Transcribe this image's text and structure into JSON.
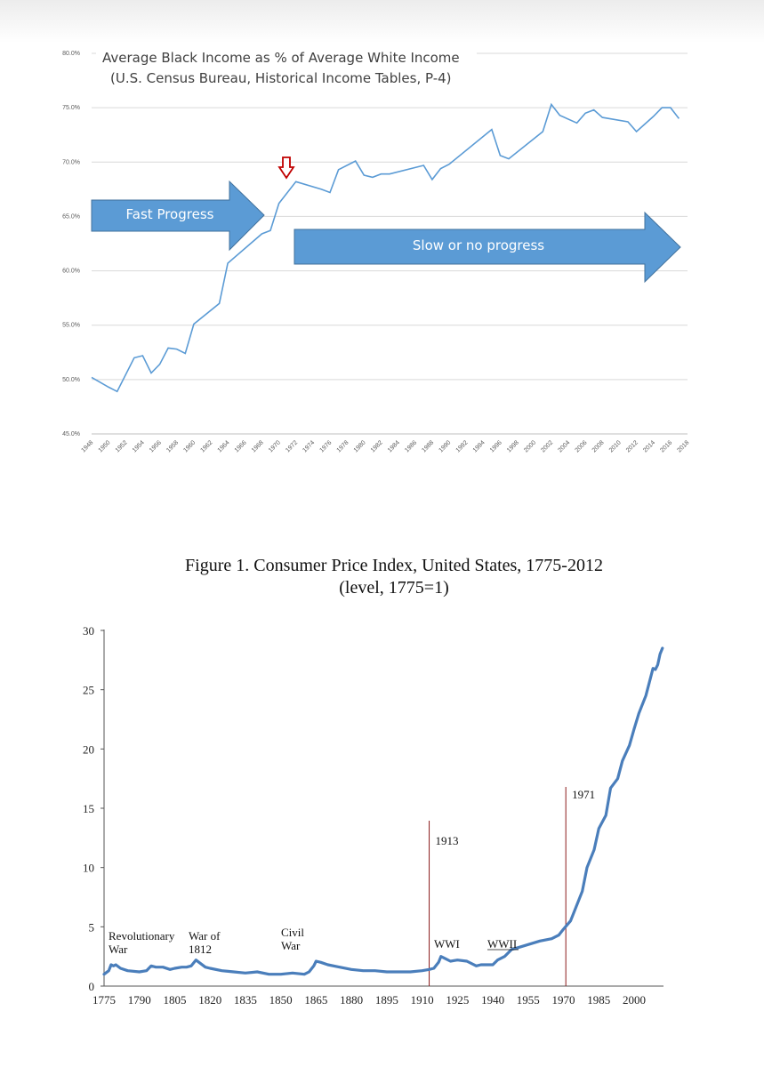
{
  "chart_data": [
    {
      "type": "line",
      "title": "Average Black Income as % of Average White Income",
      "subtitle": "(U.S. Census Bureau, Historical Income Tables, P-4)",
      "xlabel": "",
      "ylabel": "",
      "ylim": [
        45,
        80
      ],
      "yticks": [
        "45.0%",
        "50.0%",
        "55.0%",
        "60.0%",
        "65.0%",
        "70.0%",
        "75.0%",
        "80.0%"
      ],
      "xticks": [
        "1948",
        "1950",
        "1952",
        "1954",
        "1956",
        "1958",
        "1960",
        "1962",
        "1964",
        "1966",
        "1968",
        "1970",
        "1972",
        "1974",
        "1976",
        "1978",
        "1980",
        "1982",
        "1984",
        "1986",
        "1988",
        "1990",
        "1992",
        "1994",
        "1996",
        "1998",
        "2000",
        "2002",
        "2004",
        "2006",
        "2008",
        "2010",
        "2012",
        "2014",
        "2016",
        "2018"
      ],
      "grid": true,
      "line_color": "#5b9bd5",
      "series": [
        {
          "x": [
            1948,
            1950,
            1951,
            1953,
            1954,
            1955,
            1956,
            1957,
            1958,
            1959,
            1960,
            1963,
            1964,
            1968,
            1969,
            1970,
            1972,
            1975,
            1976,
            1977,
            1979,
            1980,
            1981,
            1982,
            1983,
            1987,
            1988,
            1989,
            1990,
            1995,
            1996,
            1997,
            2001,
            2002,
            2003,
            2005,
            2006,
            2007,
            2008,
            2011,
            2012,
            2014,
            2015,
            2016,
            2017
          ],
          "values": [
            50.2,
            49.3,
            48.9,
            52.0,
            52.2,
            50.6,
            51.4,
            52.9,
            52.8,
            52.4,
            55.1,
            57.0,
            60.7,
            63.4,
            63.7,
            66.2,
            68.2,
            67.5,
            67.2,
            69.3,
            70.1,
            68.8,
            68.6,
            68.9,
            68.9,
            69.7,
            68.4,
            69.4,
            69.8,
            73.0,
            70.6,
            70.3,
            72.8,
            75.3,
            74.3,
            73.6,
            74.5,
            74.8,
            74.1,
            73.7,
            72.8,
            74.2,
            75.0,
            75.0,
            74.0
          ]
        }
      ],
      "annotations": [
        {
          "text": "Fast Progress",
          "kind": "arrow",
          "color": "#5b9bd5"
        },
        {
          "text": "Slow or no progress",
          "kind": "arrow",
          "color": "#5b9bd5"
        },
        {
          "kind": "down-arrow-marker",
          "color": "#c00000",
          "at_x": 1971
        }
      ]
    },
    {
      "type": "line",
      "title": "Figure 1. Consumer Price Index, United States, 1775-2012",
      "subtitle": "(level, 1775=1)",
      "xlabel": "",
      "ylabel": "",
      "xlim": [
        1775,
        2012
      ],
      "ylim": [
        0,
        30
      ],
      "yticks": [
        "0",
        "5",
        "10",
        "15",
        "20",
        "25",
        "30"
      ],
      "xticks": [
        "1775",
        "1790",
        "1805",
        "1820",
        "1835",
        "1850",
        "1865",
        "1880",
        "1895",
        "1910",
        "1925",
        "1940",
        "1955",
        "1970",
        "1985",
        "2000"
      ],
      "line_color": "#4a7ebb",
      "series": [
        {
          "x": [
            1775,
            1777,
            1778,
            1779,
            1780,
            1782,
            1785,
            1790,
            1793,
            1795,
            1797,
            1800,
            1803,
            1805,
            1808,
            1810,
            1812,
            1814,
            1816,
            1818,
            1820,
            1825,
            1830,
            1835,
            1840,
            1845,
            1850,
            1855,
            1860,
            1862,
            1864,
            1865,
            1867,
            1870,
            1875,
            1880,
            1885,
            1890,
            1895,
            1900,
            1905,
            1910,
            1913,
            1915,
            1917,
            1918,
            1920,
            1922,
            1925,
            1929,
            1933,
            1935,
            1940,
            1942,
            1945,
            1948,
            1950,
            1955,
            1960,
            1965,
            1968,
            1970,
            1973,
            1975,
            1978,
            1980,
            1983,
            1985,
            1988,
            1990,
            1993,
            1995,
            1998,
            2000,
            2002,
            2005,
            2008,
            2009,
            2010,
            2011,
            2012
          ],
          "values": [
            1.0,
            1.3,
            1.8,
            1.7,
            1.8,
            1.5,
            1.3,
            1.2,
            1.3,
            1.7,
            1.6,
            1.6,
            1.4,
            1.5,
            1.6,
            1.6,
            1.7,
            2.2,
            1.9,
            1.6,
            1.5,
            1.3,
            1.2,
            1.1,
            1.2,
            1.0,
            1.0,
            1.1,
            1.0,
            1.2,
            1.7,
            2.1,
            2.0,
            1.8,
            1.6,
            1.4,
            1.3,
            1.3,
            1.2,
            1.2,
            1.2,
            1.3,
            1.4,
            1.5,
            2.0,
            2.5,
            2.3,
            2.1,
            2.2,
            2.1,
            1.7,
            1.8,
            1.8,
            2.2,
            2.5,
            3.1,
            3.2,
            3.5,
            3.8,
            4.0,
            4.3,
            4.8,
            5.5,
            6.5,
            8.0,
            10.0,
            11.5,
            13.3,
            14.4,
            16.7,
            17.5,
            19.0,
            20.3,
            21.7,
            23.0,
            24.5,
            26.8,
            26.7,
            27.1,
            28.0,
            28.5
          ]
        }
      ],
      "annotations": [
        {
          "text": "Revolutionary",
          "text2": "War",
          "x": 1775
        },
        {
          "text": "War of",
          "text2": "1812",
          "x": 1812
        },
        {
          "text": "Civil",
          "text2": "War",
          "x": 1861
        },
        {
          "text": "1913",
          "x": 1913,
          "vline": true
        },
        {
          "text": "WWI",
          "x": 1917
        },
        {
          "text": "WWII",
          "x": 1941
        },
        {
          "text": "1971",
          "x": 1971,
          "vline": true
        }
      ],
      "vline_color": "#8b1c1c"
    }
  ]
}
